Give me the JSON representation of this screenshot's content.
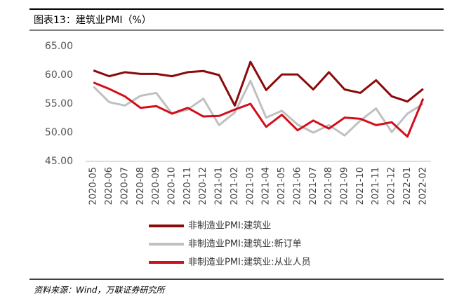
{
  "header": {
    "title": "图表13：建筑业PMI（%）"
  },
  "chart_data": {
    "type": "line",
    "categories": [
      "2020-05",
      "2020-06",
      "2020-07",
      "2020-08",
      "2020-09",
      "2020-10",
      "2020-11",
      "2020-12",
      "2021-01",
      "2021-02",
      "2021-03",
      "2021-04",
      "2021-05",
      "2021-06",
      "2021-07",
      "2021-08",
      "2021-09",
      "2021-10",
      "2021-11",
      "2021-12",
      "2022-01",
      "2022-02"
    ],
    "series": [
      {
        "name": "非制造业PMI:建筑业",
        "color": "#8b0a0a",
        "values": [
          60.8,
          59.8,
          60.5,
          60.2,
          60.2,
          59.8,
          60.5,
          60.7,
          60.0,
          54.7,
          62.3,
          57.4,
          60.1,
          60.1,
          57.5,
          60.5,
          57.5,
          56.9,
          59.1,
          56.3,
          55.4,
          57.6
        ]
      },
      {
        "name": "非制造业PMI:建筑业:新订单",
        "color": "#c0c0c0",
        "values": [
          58.0,
          55.3,
          54.7,
          56.4,
          56.9,
          53.3,
          54.0,
          55.9,
          51.3,
          53.5,
          59.0,
          52.6,
          53.8,
          51.4,
          50.0,
          51.3,
          49.5,
          52.1,
          54.2,
          50.1,
          53.3,
          55.0
        ]
      },
      {
        "name": "非制造业PMI:建筑业:从业人员",
        "color": "#d0101c",
        "values": [
          58.7,
          57.6,
          56.3,
          54.3,
          54.6,
          53.3,
          54.3,
          52.8,
          52.9,
          54.0,
          55.0,
          51.0,
          53.1,
          50.4,
          52.1,
          50.7,
          52.6,
          52.4,
          51.3,
          51.8,
          49.3,
          55.9
        ]
      }
    ],
    "ylim": [
      45,
      65
    ],
    "yticks": [
      {
        "value": 45,
        "label": "45.00"
      },
      {
        "value": 50,
        "label": "50.00"
      },
      {
        "value": 55,
        "label": "55.00"
      },
      {
        "value": 60,
        "label": "60.00"
      },
      {
        "value": 65,
        "label": "65.00"
      }
    ],
    "grid": false,
    "source": "资料来源：Wind，万联证券研究所"
  }
}
